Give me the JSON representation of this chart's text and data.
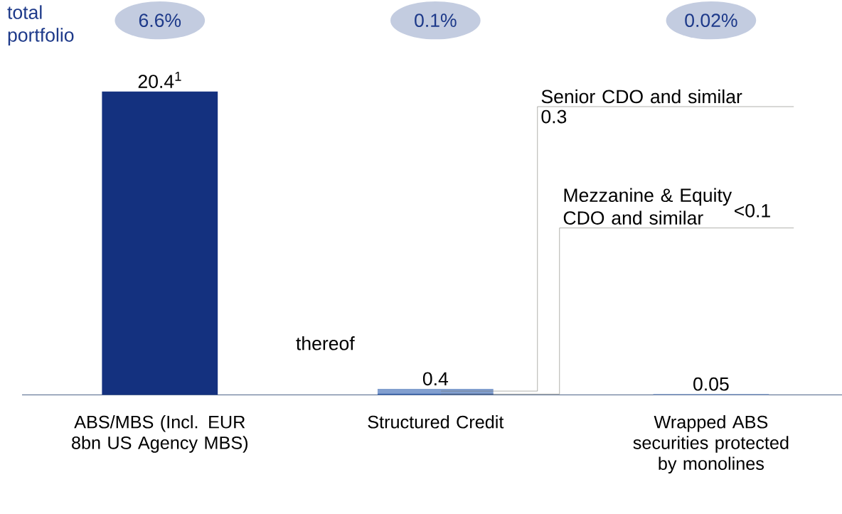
{
  "chart_data": {
    "type": "bar",
    "stacked": true,
    "title": "total portfolio",
    "categories": [
      "ABS/MBS (Incl. EUR 8bn US Agency MBS)",
      "Structured Credit",
      "Wrapped ABS securities protected by monolines"
    ],
    "series": [
      {
        "colors": [
          "#14317f",
          null,
          "#829fcf"
        ],
        "values": [
          20.4,
          null,
          0.05
        ],
        "value_labels": [
          "20.4$^{1}$",
          null,
          "0.05"
        ]
      },
      {
        "name": "Mezzanine & Equity CDO and similar",
        "color": "#3f68b0",
        "values": [
          null,
          0.1,
          null
        ],
        "value_labels": [
          null,
          "<0.1",
          null
        ]
      },
      {
        "name": "Senior CDO and similar",
        "color": "#829fcf",
        "values": [
          null,
          0.3,
          null
        ],
        "value_labels": [
          null,
          "0.3",
          null
        ]
      }
    ],
    "totals": [
      null,
      "0.4",
      null
    ],
    "annotations": [
      "6.6%",
      "0.1%",
      "0.02%",
      "thereof"
    ]
  }
}
